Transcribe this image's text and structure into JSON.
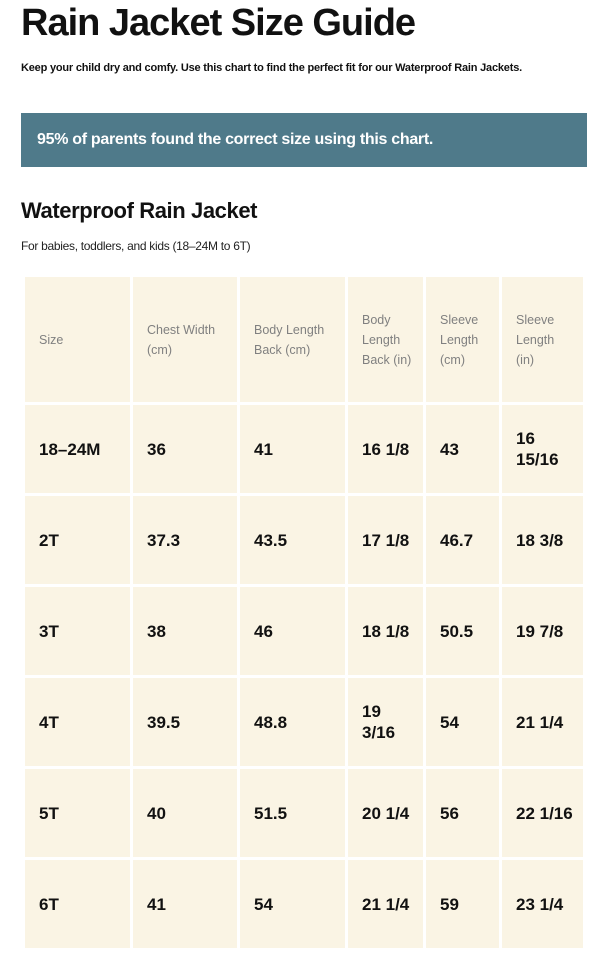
{
  "header": {
    "title": "Rain Jacket Size Guide",
    "subtitle": "Keep your child dry and comfy. Use this chart to find the perfect fit for our Waterproof Rain Jackets."
  },
  "banner": {
    "text": "95% of parents found the correct size using this chart."
  },
  "section": {
    "title": "Waterproof Rain Jacket",
    "subtitle": "For babies, toddlers, and kids (18–24M to 6T)"
  },
  "table": {
    "columns": [
      "Size",
      "Chest Width (cm)",
      "Body Length Back (cm)",
      "Body Length Back (in)",
      "Sleeve Length (cm)",
      "Sleeve Length (in)"
    ],
    "rows": [
      [
        "18–24M",
        "36",
        "41",
        "16 1/8",
        "43",
        "16 15/16"
      ],
      [
        "2T",
        "37.3",
        "43.5",
        "17 1/8",
        "46.7",
        "18 3/8"
      ],
      [
        "3T",
        "38",
        "46",
        "18 1/8",
        "50.5",
        "19 7/8"
      ],
      [
        "4T",
        "39.5",
        "48.8",
        "19 3/16",
        "54",
        "21 1/4"
      ],
      [
        "5T",
        "40",
        "51.5",
        "20 1/4",
        "56",
        "22 1/16"
      ],
      [
        "6T",
        "41",
        "54",
        "21 1/4",
        "59",
        "23 1/4"
      ]
    ]
  }
}
